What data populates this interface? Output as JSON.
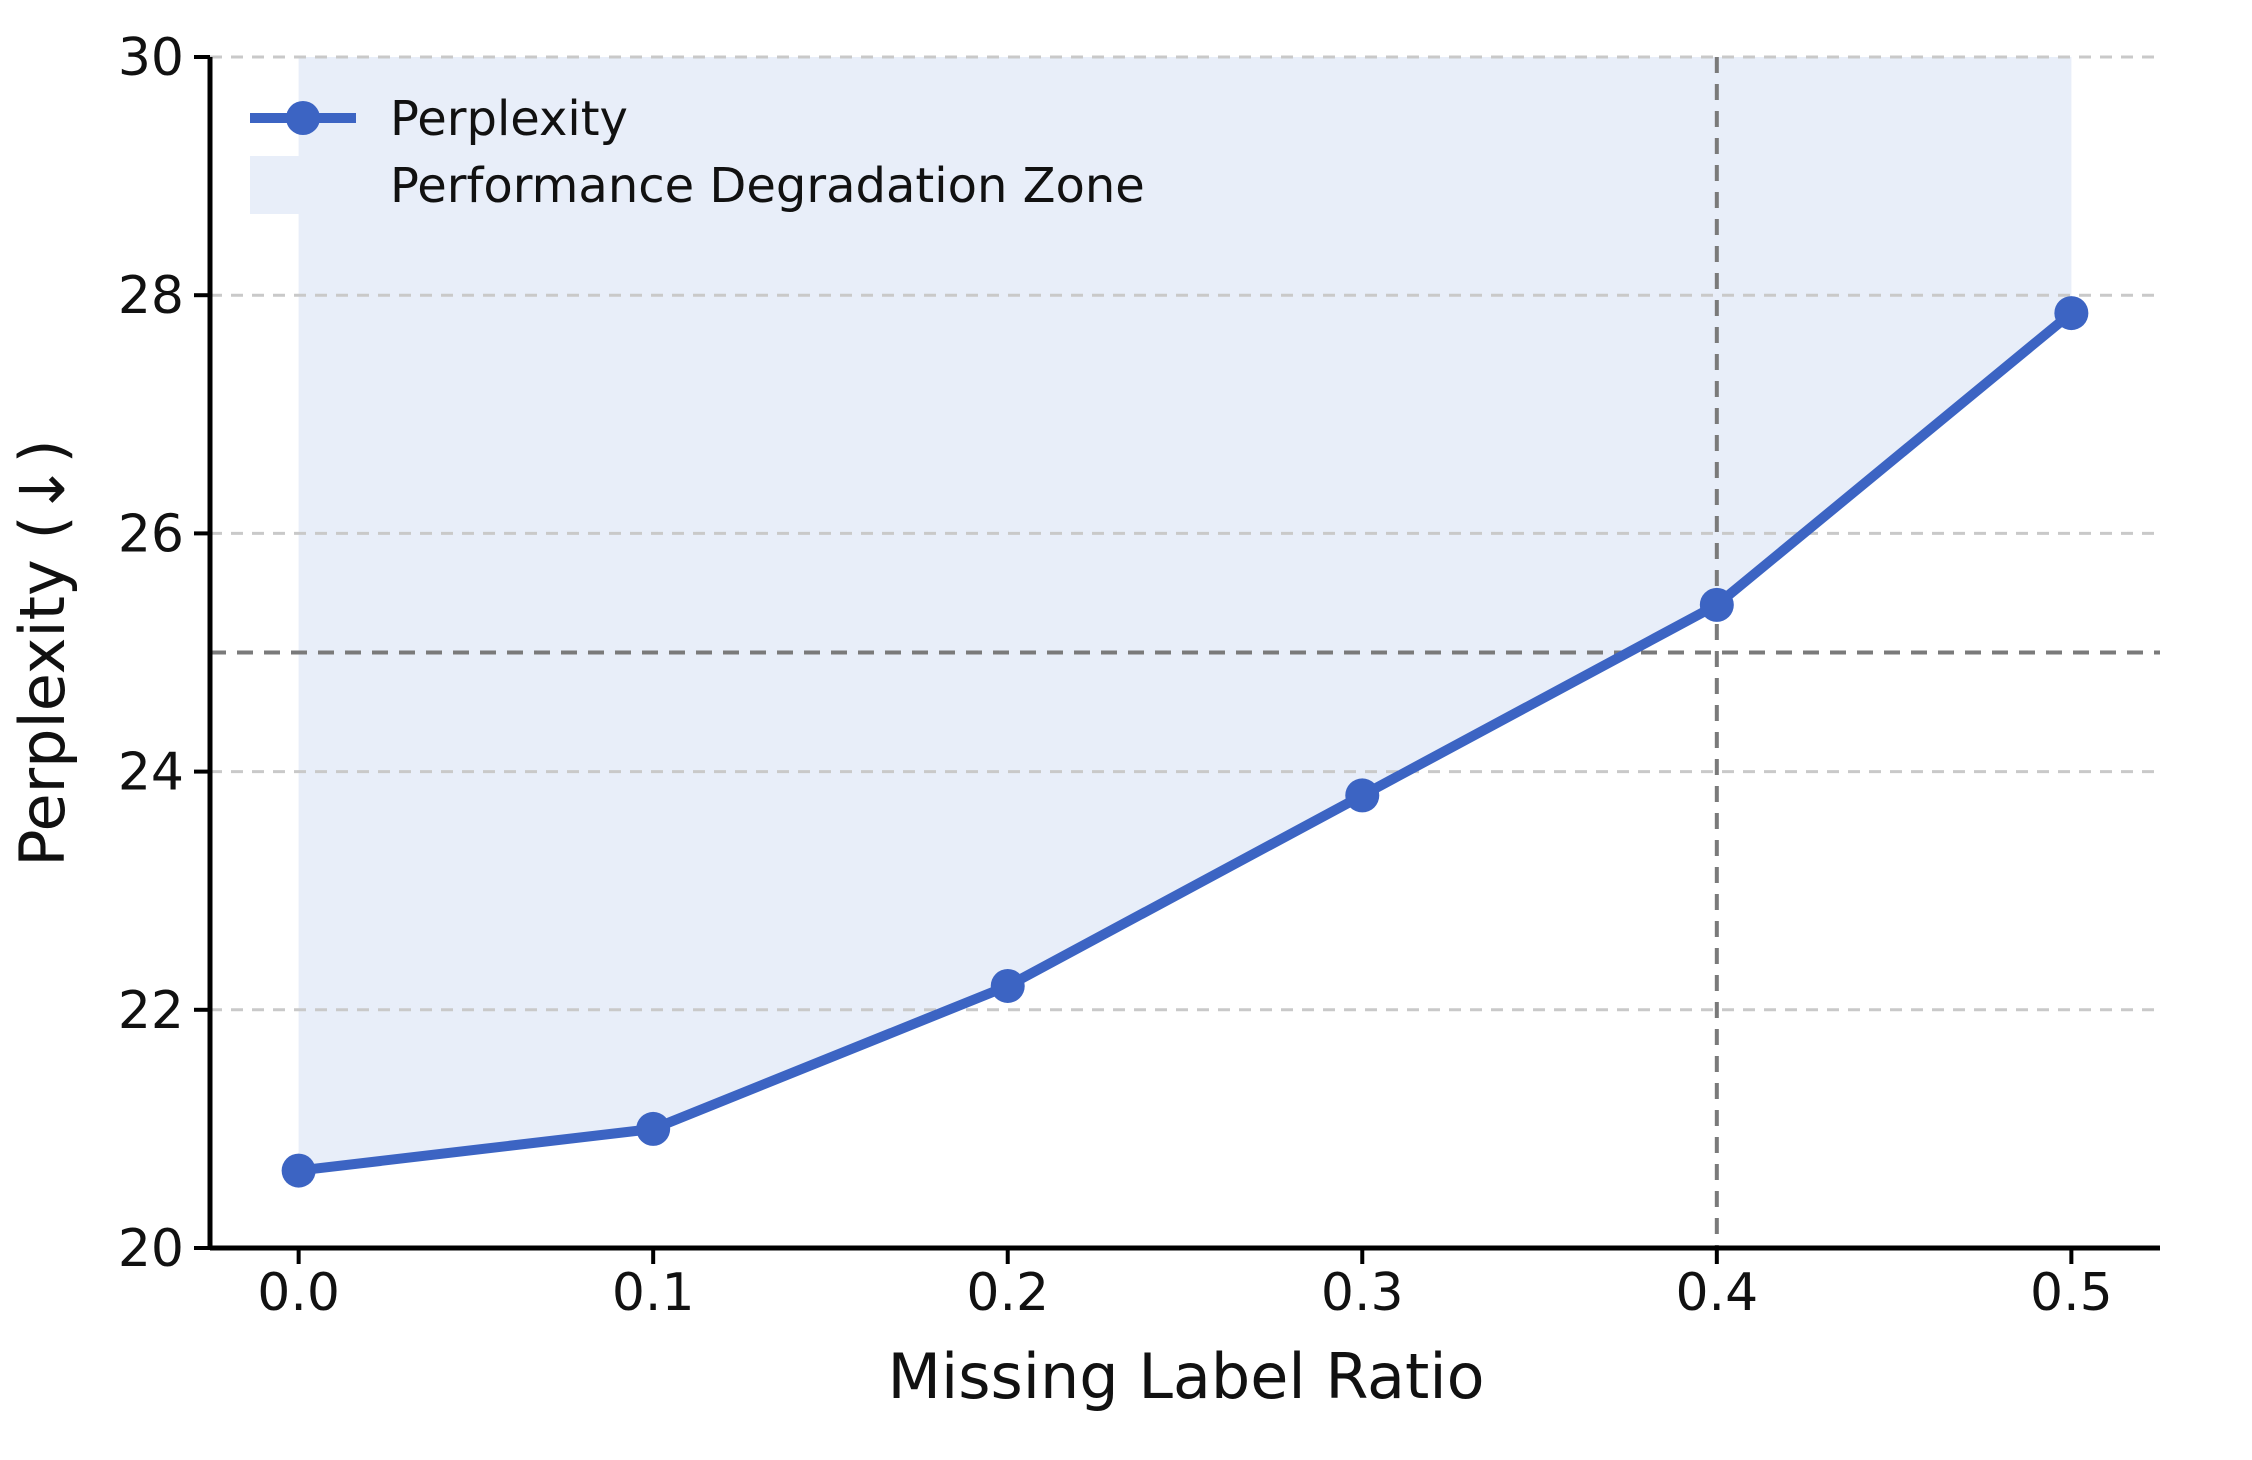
{
  "chart_data": {
    "type": "line",
    "title": "",
    "xlabel": "Missing Label Ratio",
    "ylabel": "Perplexity (↓)",
    "x": [
      0.0,
      0.1,
      0.2,
      0.3,
      0.4,
      0.5
    ],
    "series": [
      {
        "name": "Perplexity",
        "values": [
          20.65,
          21.0,
          22.2,
          23.8,
          25.4,
          27.85
        ]
      }
    ],
    "fill_zone": {
      "label": "Performance Degradation Zone",
      "from_series": "Perplexity",
      "to_value": 30
    },
    "xlim": [
      -0.025,
      0.525
    ],
    "ylim": [
      20,
      30
    ],
    "xticks": {
      "values": [
        0.0,
        0.1,
        0.2,
        0.3,
        0.4,
        0.5
      ],
      "labels": [
        "0.0",
        "0.1",
        "0.2",
        "0.3",
        "0.4",
        "0.5"
      ]
    },
    "yticks": {
      "values": [
        20,
        22,
        24,
        26,
        28,
        30
      ],
      "labels": [
        "20",
        "22",
        "24",
        "26",
        "28",
        "30"
      ]
    },
    "gridlines": {
      "y_values": [
        22,
        24,
        26,
        28,
        30
      ],
      "style": "dashed"
    },
    "reference_lines": {
      "vertical_x": 0.4,
      "horizontal_y": 25,
      "style": "dashed"
    },
    "legend": {
      "position": "upper-left",
      "frame": false,
      "entries": [
        "Perplexity",
        "Performance Degradation Zone"
      ]
    },
    "colors": {
      "line": "#3C64C3",
      "marker": "#3C64C3",
      "fill": "#E8EEF9",
      "grid": "#C9C9C9",
      "reference": "#7A7A7A",
      "axis": "#000000",
      "text": "#111111"
    }
  }
}
